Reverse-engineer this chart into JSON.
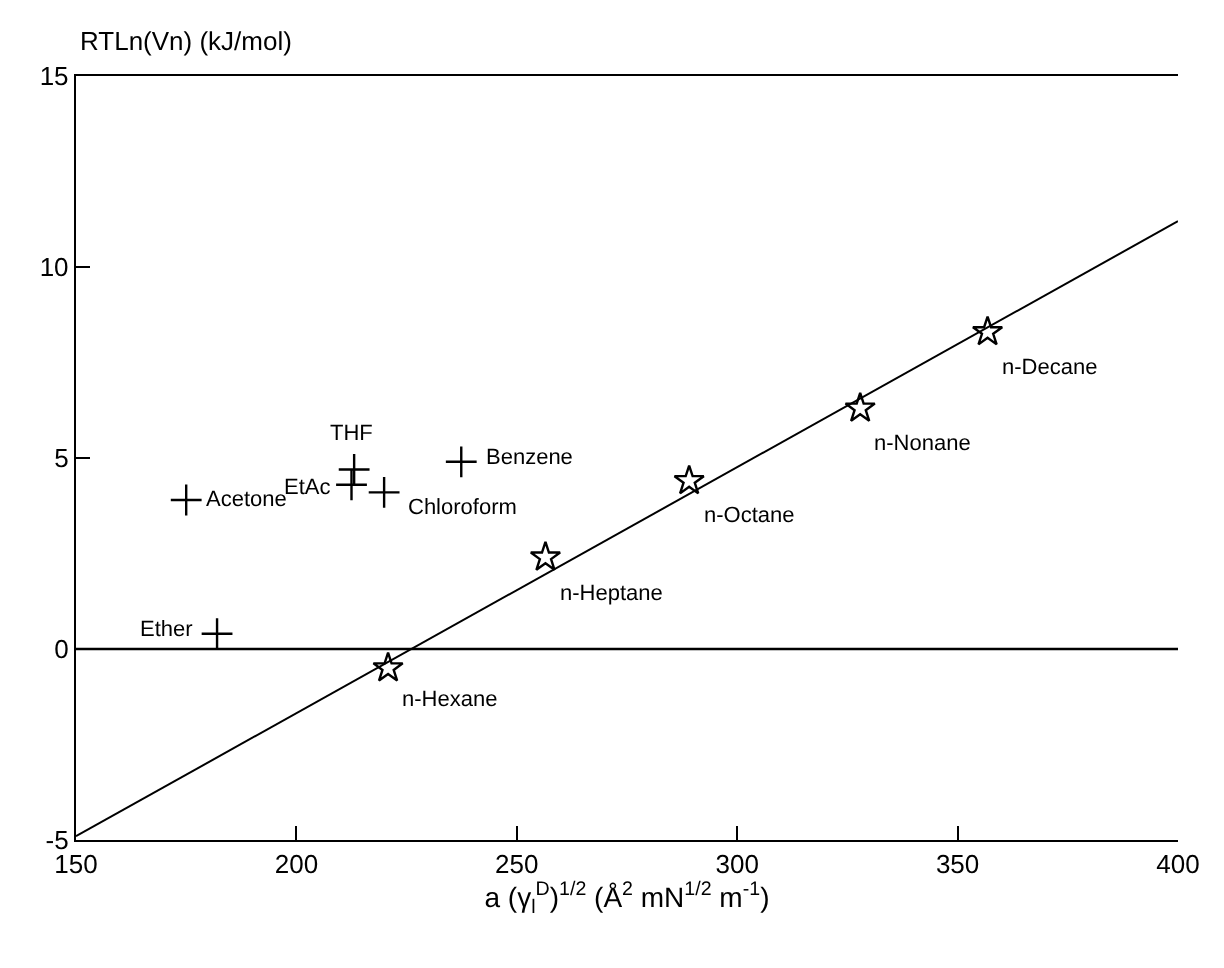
{
  "chart_data": {
    "type": "scatter",
    "ylabel": "RTLn(Vn) (kJ/mol)",
    "xlabel": "a (γ$_{l}$$^{D}$)$^{1/2}$ (Å$^{2}$ mN$^{1/2}$ m$^{-1}$)",
    "xlim": [
      150,
      400
    ],
    "xticks": [
      150,
      200,
      250,
      300,
      350,
      400
    ],
    "ylim": [
      -5,
      15
    ],
    "yticks": [
      -5,
      0,
      5,
      10,
      15
    ],
    "series": [
      {
        "marker": "star",
        "color": "#000000",
        "x": [
          220.8,
          256.5,
          289.1,
          327.9,
          356.8
        ],
        "values": [
          -0.5,
          2.4,
          4.4,
          6.3,
          8.3
        ]
      },
      {
        "marker": "cross",
        "color": "#000000",
        "x": [
          175,
          182,
          212.5,
          213.1,
          219.9,
          237.4
        ],
        "values": [
          3.9,
          0.4,
          4.3,
          4.7,
          4.1,
          4.9
        ]
      },
      {
        "type": "line",
        "marker": "none",
        "color": "#000000",
        "line_style": "solid",
        "x": [
          150,
          400
        ],
        "values": [
          -4.9,
          11.2
        ]
      }
    ],
    "ref_lines": [
      {
        "axis": "y",
        "value": 0,
        "color": "#000000",
        "line_style": "solid"
      }
    ],
    "annotations": [
      {
        "text": "n-Hexane",
        "x": 220.8,
        "y": -0.5
      },
      {
        "text": "n-Heptane",
        "x": 256.5,
        "y": 2.4
      },
      {
        "text": "n-Octane",
        "x": 289.1,
        "y": 4.4
      },
      {
        "text": "n-Nonane",
        "x": 327.9,
        "y": 6.3
      },
      {
        "text": "n-Decane",
        "x": 356.8,
        "y": 8.3
      },
      {
        "text": "Acetone",
        "x": 175,
        "y": 3.9
      },
      {
        "text": "Ether",
        "x": 182,
        "y": 0.4
      },
      {
        "text": "EtAc",
        "x": 212.5,
        "y": 4.3
      },
      {
        "text": "THF",
        "x": 213.1,
        "y": 4.7
      },
      {
        "text": "Chloroform",
        "x": 219.9,
        "y": 4.1
      },
      {
        "text": "Benzene",
        "x": 237.4,
        "y": 4.9
      }
    ]
  }
}
